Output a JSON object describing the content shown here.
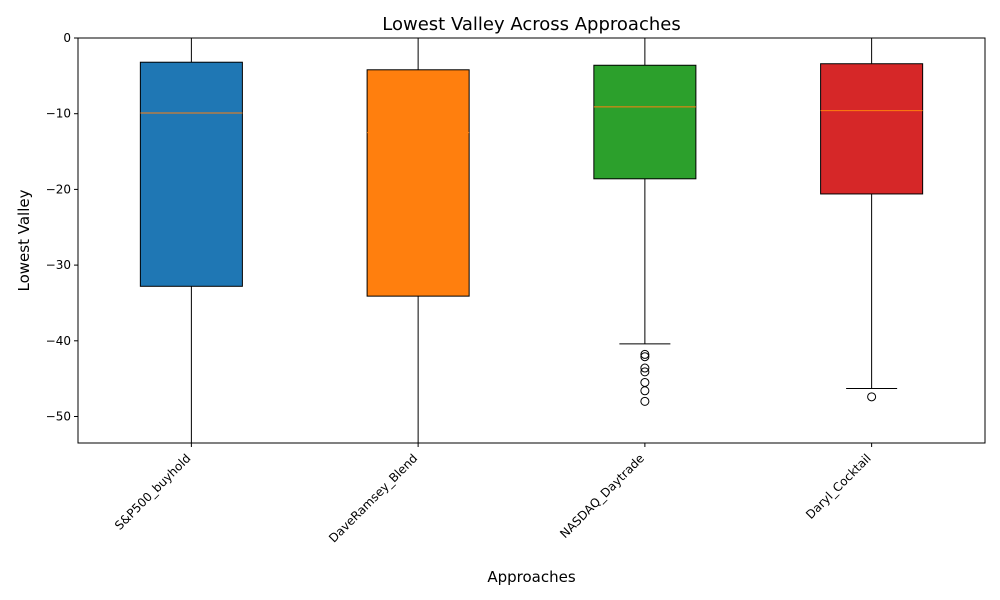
{
  "chart_data": {
    "type": "box",
    "title": "Lowest Valley Across Approaches",
    "xlabel": "Approaches",
    "ylabel": "Lowest Valley",
    "ylim": [
      -53.5,
      0
    ],
    "yticks": [
      0,
      -10,
      -20,
      -30,
      -40,
      -50
    ],
    "ytick_labels": [
      "0",
      "−10",
      "−20",
      "−30",
      "−40",
      "−50"
    ],
    "grid": false,
    "categories": [
      "S&P500_buyhold",
      "DaveRamsey_Blend",
      "NASDAQ_Daytrade",
      "Daryl_Cocktail"
    ],
    "boxes": [
      {
        "name": "S&P500_buyhold",
        "color": "#1f77b4",
        "q1": -32.8,
        "median": -9.9,
        "q3": -3.2,
        "whisker_low": -53.5,
        "whisker_high": 0,
        "outliers": []
      },
      {
        "name": "DaveRamsey_Blend",
        "color": "#ff7f0e",
        "q1": -34.1,
        "median": -12.5,
        "q3": -4.2,
        "whisker_low": -53.5,
        "whisker_high": 0,
        "outliers": []
      },
      {
        "name": "NASDAQ_Daytrade",
        "color": "#2ca02c",
        "q1": -18.6,
        "median": -9.1,
        "q3": -3.6,
        "whisker_low": -40.4,
        "whisker_high": 0,
        "outliers": [
          -41.8,
          -42.1,
          -43.6,
          -44.1,
          -45.5,
          -46.6,
          -48.0
        ]
      },
      {
        "name": "Daryl_Cocktail",
        "color": "#d62728",
        "q1": -20.6,
        "median": -9.6,
        "q3": -3.4,
        "whisker_low": -46.3,
        "whisker_high": 0,
        "outliers": [
          -47.4
        ]
      }
    ],
    "median_color": "#ff7f0e"
  }
}
